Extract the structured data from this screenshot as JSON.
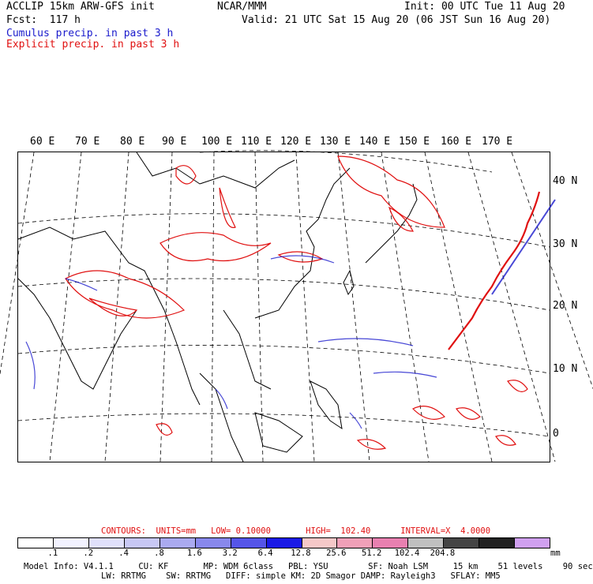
{
  "header": {
    "line1_left": "ACCLIP 15km ARW-GFS init",
    "line1_center": "NCAR/MMM",
    "line1_right": "Init: 00 UTC Tue 11 Aug 20",
    "line2_left": "Fcst:  117 h",
    "line2_right": "Valid: 21 UTC Sat 15 Aug 20 (06 JST Sun 16 Aug 20)",
    "cumulus_label": "Cumulus precip. in past 3 h",
    "explicit_label": "Explicit precip. in past 3 h"
  },
  "colors": {
    "cumulus": "#1a1acc",
    "explicit": "#e01010"
  },
  "map": {
    "lon_labels": [
      "60 E",
      "70 E",
      "80 E",
      "90 E",
      "100 E",
      "110 E",
      "120 E",
      "130 E",
      "140 E",
      "150 E",
      "160 E",
      "170 E"
    ],
    "lat_labels": [
      "40 N",
      "30 N",
      "20 N",
      "10 N",
      "0"
    ]
  },
  "legend": {
    "contours_text": "CONTOURS:  UNITS=mm   LOW= 0.10000       HIGH=  102.40      INTERVAL=X  4.0000",
    "swatch_colors": [
      "#ffffff",
      "#f2f2ff",
      "#e0e0fb",
      "#c8c8f5",
      "#aaaaf0",
      "#8888ec",
      "#5555e8",
      "#1a1ae6",
      "#f5c8c8",
      "#f0a0b8",
      "#e880b0",
      "#c0c0c0",
      "#444444",
      "#222222",
      "#d0a0f0"
    ],
    "ticks": [
      ".1",
      ".2",
      ".4",
      ".8",
      "1.6",
      "3.2",
      "6.4",
      "12.8",
      "25.6",
      "51.2",
      "102.4",
      "204.8"
    ],
    "unit": "mm"
  },
  "footer": {
    "line1": "Model Info: V4.1.1     CU: KF       MP: WDM 6class   PBL: YSU        SF: Noah LSM     15 km    51 levels    90 sec",
    "line2": "LW: RRTMG    SW: RRTMG   DIFF: simple KM: 2D Smagor DAMP: Rayleigh3   SFLAY: MM5"
  }
}
